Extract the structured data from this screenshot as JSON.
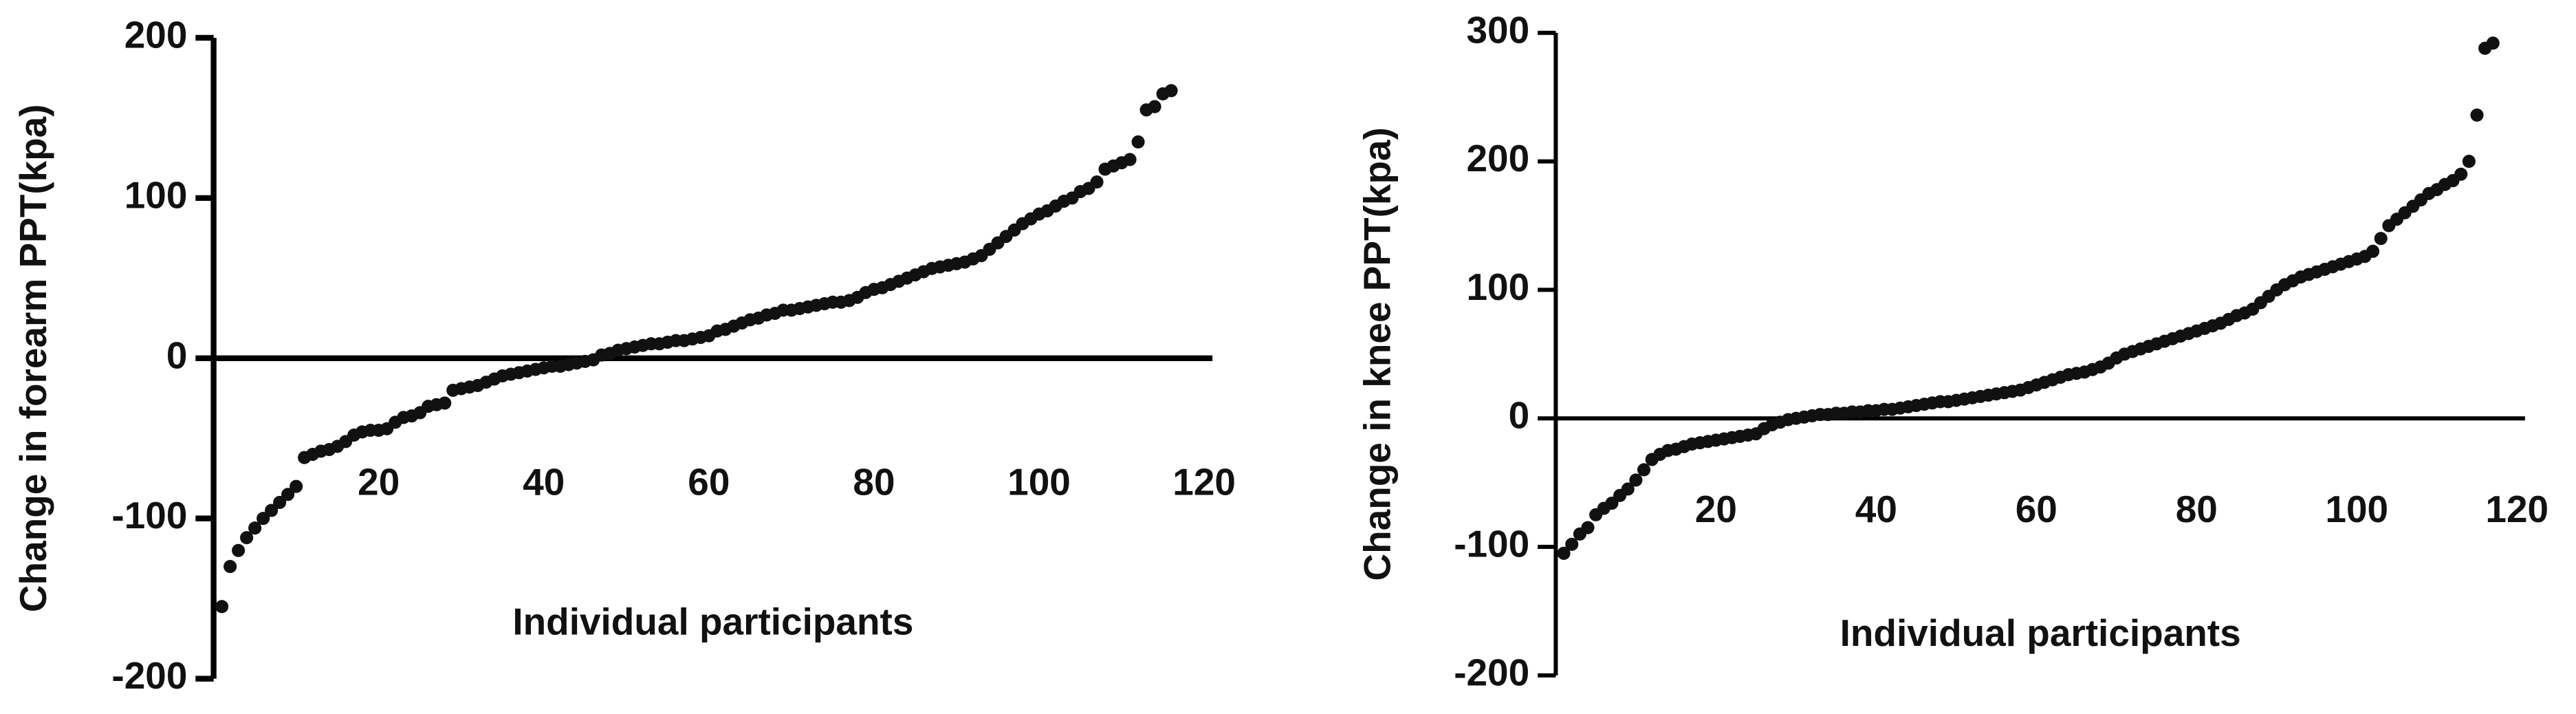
{
  "chart_data": [
    {
      "type": "scatter",
      "xlabel": "Individual participants",
      "ylabel": "Change in forearm PPT(kpa)",
      "color": "#111111",
      "xlim": [
        0,
        121
      ],
      "ylim": [
        -200,
        200
      ],
      "xticks": [
        20,
        40,
        60,
        80,
        100,
        120
      ],
      "yticks": [
        -200,
        -100,
        0,
        100,
        200
      ],
      "x": [
        1,
        2,
        3,
        4,
        5,
        6,
        7,
        8,
        9,
        10,
        11,
        12,
        13,
        14,
        15,
        16,
        17,
        18,
        19,
        20,
        21,
        22,
        23,
        24,
        25,
        26,
        27,
        28,
        29,
        30,
        31,
        32,
        33,
        34,
        35,
        36,
        37,
        38,
        39,
        40,
        41,
        42,
        43,
        44,
        45,
        46,
        47,
        48,
        49,
        50,
        51,
        52,
        53,
        54,
        55,
        56,
        57,
        58,
        59,
        60,
        61,
        62,
        63,
        64,
        65,
        66,
        67,
        68,
        69,
        70,
        71,
        72,
        73,
        74,
        75,
        76,
        77,
        78,
        79,
        80,
        81,
        82,
        83,
        84,
        85,
        86,
        87,
        88,
        89,
        90,
        91,
        92,
        93,
        94,
        95,
        96,
        97,
        98,
        99,
        100,
        101,
        102,
        103,
        104,
        105,
        106,
        107,
        108,
        109,
        110,
        111,
        112,
        113,
        114,
        115,
        116
      ],
      "values": [
        -155,
        -130,
        -120,
        -112,
        -106,
        -100,
        -95,
        -90,
        -85,
        -80,
        -62,
        -60,
        -58,
        -57,
        -55,
        -52,
        -48,
        -46,
        -45,
        -45,
        -44,
        -40,
        -37,
        -36,
        -34,
        -30,
        -29,
        -28,
        -20,
        -19,
        -18,
        -17,
        -15,
        -13,
        -11,
        -10,
        -9,
        -8,
        -7,
        -6,
        -5,
        -5,
        -4,
        -3,
        -2,
        -1,
        2,
        3,
        5,
        6,
        7,
        8,
        9,
        9,
        10,
        11,
        11,
        12,
        13,
        14,
        17,
        18,
        20,
        22,
        24,
        25,
        27,
        28,
        30,
        30,
        31,
        32,
        33,
        34,
        35,
        35,
        36,
        38,
        41,
        43,
        44,
        46,
        48,
        50,
        52,
        54,
        56,
        57,
        58,
        59,
        60,
        62,
        64,
        68,
        72,
        76,
        80,
        84,
        87,
        90,
        92,
        95,
        98,
        100,
        104,
        106,
        110,
        118,
        120,
        122,
        124,
        135,
        155,
        157,
        165,
        167
      ]
    },
    {
      "type": "scatter",
      "xlabel": "Individual participants",
      "ylabel": "Change in knee PPT(kpa)",
      "color": "#111111",
      "xlim": [
        0,
        121
      ],
      "ylim": [
        -200,
        300
      ],
      "xticks": [
        20,
        40,
        60,
        80,
        100,
        120
      ],
      "yticks": [
        -200,
        -100,
        0,
        100,
        200,
        300
      ],
      "x": [
        1,
        2,
        3,
        4,
        5,
        6,
        7,
        8,
        9,
        10,
        11,
        12,
        13,
        14,
        15,
        16,
        17,
        18,
        19,
        20,
        21,
        22,
        23,
        24,
        25,
        26,
        27,
        28,
        29,
        30,
        31,
        32,
        33,
        34,
        35,
        36,
        37,
        38,
        39,
        40,
        41,
        42,
        43,
        44,
        45,
        46,
        47,
        48,
        49,
        50,
        51,
        52,
        53,
        54,
        55,
        56,
        57,
        58,
        59,
        60,
        61,
        62,
        63,
        64,
        65,
        66,
        67,
        68,
        69,
        70,
        71,
        72,
        73,
        74,
        75,
        76,
        77,
        78,
        79,
        80,
        81,
        82,
        83,
        84,
        85,
        86,
        87,
        88,
        89,
        90,
        91,
        92,
        93,
        94,
        95,
        96,
        97,
        98,
        99,
        100,
        101,
        102,
        103,
        104,
        105,
        106,
        107,
        108,
        109,
        110,
        111,
        112,
        113,
        114,
        115,
        116,
        117
      ],
      "values": [
        -105,
        -98,
        -90,
        -85,
        -75,
        -70,
        -66,
        -60,
        -55,
        -48,
        -40,
        -32,
        -28,
        -25,
        -24,
        -22,
        -20,
        -19,
        -18,
        -17,
        -16,
        -15,
        -14,
        -13,
        -12,
        -8,
        -5,
        -3,
        -1,
        0,
        1,
        2,
        3,
        3,
        4,
        4,
        5,
        5,
        6,
        6,
        7,
        7,
        8,
        9,
        10,
        11,
        12,
        13,
        13,
        14,
        15,
        16,
        17,
        18,
        19,
        20,
        21,
        22,
        24,
        26,
        28,
        30,
        32,
        34,
        35,
        36,
        38,
        40,
        43,
        47,
        50,
        52,
        54,
        56,
        58,
        60,
        62,
        64,
        66,
        68,
        70,
        72,
        74,
        77,
        80,
        82,
        85,
        90,
        95,
        100,
        104,
        107,
        110,
        112,
        114,
        116,
        118,
        120,
        122,
        124,
        126,
        130,
        140,
        150,
        155,
        160,
        165,
        170,
        175,
        178,
        182,
        185,
        190,
        200,
        236,
        288,
        292
      ]
    }
  ]
}
